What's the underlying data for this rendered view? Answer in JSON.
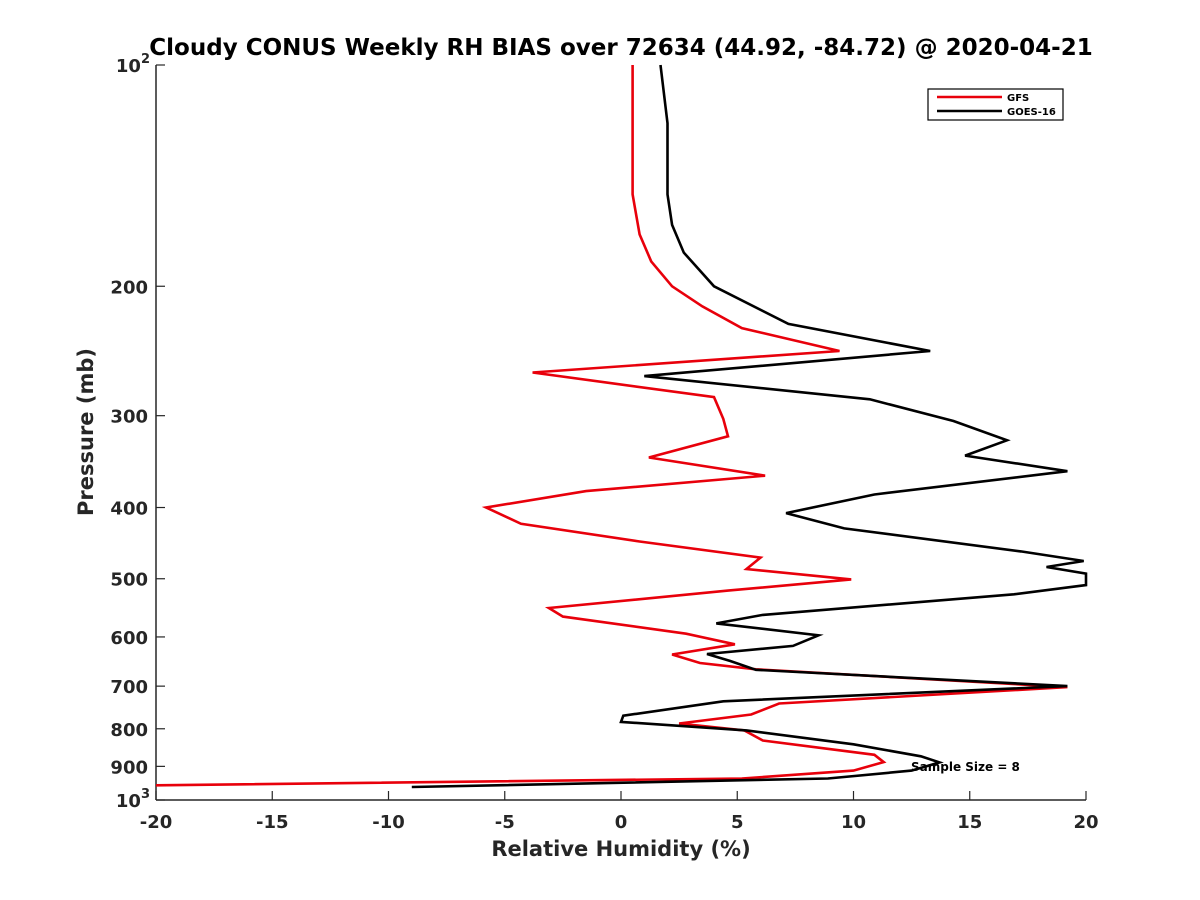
{
  "chart_data": {
    "type": "line",
    "title": "Cloudy CONUS Weekly RH BIAS over 72634 (44.92, -84.72) @ 2020-04-21",
    "xlabel": "Relative Humidity (%)",
    "ylabel": "Pressure (mb)",
    "xlim": [
      -20,
      20
    ],
    "ylim": [
      100,
      1000
    ],
    "y_scale": "log",
    "y_reversed": true,
    "grid": false,
    "x_ticks": [
      -20,
      -15,
      -10,
      -5,
      0,
      5,
      10,
      15,
      20
    ],
    "x_tick_labels": [
      "-20",
      "-15",
      "-10",
      "-5",
      "0",
      "5",
      "10",
      "15",
      "20"
    ],
    "y_ticks": [
      100,
      200,
      300,
      400,
      500,
      600,
      700,
      800,
      900,
      1000
    ],
    "y_tick_labels": [
      {
        "base": "10",
        "exp": "2"
      },
      {
        "base": "200",
        "exp": ""
      },
      {
        "base": "300",
        "exp": ""
      },
      {
        "base": "400",
        "exp": ""
      },
      {
        "base": "500",
        "exp": ""
      },
      {
        "base": "600",
        "exp": ""
      },
      {
        "base": "700",
        "exp": ""
      },
      {
        "base": "800",
        "exp": ""
      },
      {
        "base": "900",
        "exp": ""
      },
      {
        "base": "10",
        "exp": "3"
      }
    ],
    "legend_position": "top-right",
    "annotation": "Sample Size = 8",
    "series": [
      {
        "name": "GFS",
        "color": "#e8000b",
        "points": [
          [
            0.5,
            100
          ],
          [
            0.5,
            150
          ],
          [
            0.8,
            170
          ],
          [
            1.3,
            185
          ],
          [
            2.2,
            200
          ],
          [
            3.5,
            213
          ],
          [
            5.2,
            228
          ],
          [
            9.4,
            245
          ],
          [
            -3.8,
            262
          ],
          [
            4.0,
            283
          ],
          [
            4.4,
            303
          ],
          [
            4.6,
            320
          ],
          [
            1.2,
            342
          ],
          [
            6.2,
            362
          ],
          [
            -1.5,
            380
          ],
          [
            -5.8,
            400
          ],
          [
            -4.3,
            421
          ],
          [
            0.8,
            445
          ],
          [
            6.0,
            468
          ],
          [
            5.4,
            485
          ],
          [
            9.9,
            501
          ],
          [
            4.6,
            519
          ],
          [
            -3.1,
            548
          ],
          [
            -2.5,
            563
          ],
          [
            2.8,
            594
          ],
          [
            4.9,
            614
          ],
          [
            2.2,
            634
          ],
          [
            3.4,
            651
          ],
          [
            5.8,
            664
          ],
          [
            19.2,
            702
          ],
          [
            6.8,
            739
          ],
          [
            5.6,
            765
          ],
          [
            2.5,
            787
          ],
          [
            5.3,
            804
          ],
          [
            6.1,
            830
          ],
          [
            10.9,
            868
          ],
          [
            11.3,
            888
          ],
          [
            10.0,
            912
          ],
          [
            5.2,
            935
          ],
          [
            -20.0,
            955
          ]
        ]
      },
      {
        "name": "GOES-16",
        "color": "#000000",
        "points": [
          [
            1.7,
            100
          ],
          [
            2.0,
            120
          ],
          [
            2.0,
            150
          ],
          [
            2.2,
            165
          ],
          [
            2.7,
            180
          ],
          [
            4.0,
            200
          ],
          [
            7.2,
            225
          ],
          [
            13.3,
            245
          ],
          [
            1.0,
            265
          ],
          [
            10.7,
            285
          ],
          [
            14.3,
            305
          ],
          [
            16.6,
            324
          ],
          [
            14.8,
            340
          ],
          [
            19.2,
            357
          ],
          [
            10.9,
            384
          ],
          [
            7.1,
            407
          ],
          [
            9.6,
            427
          ],
          [
            17.2,
            459
          ],
          [
            19.9,
            473
          ],
          [
            18.3,
            482
          ],
          [
            20.0,
            492
          ],
          [
            20.0,
            510
          ],
          [
            16.9,
            525
          ],
          [
            6.1,
            560
          ],
          [
            4.1,
            575
          ],
          [
            8.5,
            597
          ],
          [
            7.4,
            617
          ],
          [
            3.7,
            633
          ],
          [
            4.7,
            647
          ],
          [
            5.8,
            665
          ],
          [
            19.2,
            700
          ],
          [
            4.4,
            734
          ],
          [
            0.1,
            768
          ],
          [
            0.0,
            783
          ],
          [
            5.4,
            804
          ],
          [
            10.0,
            840
          ],
          [
            12.9,
            872
          ],
          [
            13.7,
            889
          ],
          [
            12.5,
            912
          ],
          [
            8.9,
            935
          ],
          [
            -9.0,
            960
          ]
        ]
      }
    ]
  }
}
